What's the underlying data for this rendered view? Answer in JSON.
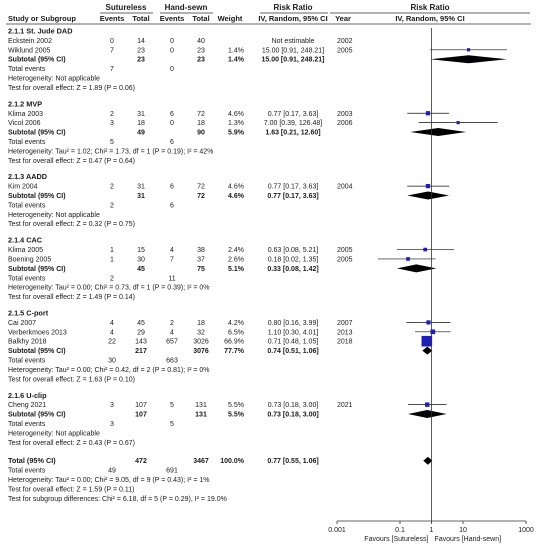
{
  "chart_data": {
    "type": "forest",
    "headers": {
      "group1": "Sutureless",
      "group2": "Hand-sewn",
      "rr_col": "Risk Ratio",
      "rr_method": "IV, Random, 95% CI",
      "plot_title": "Risk Ratio",
      "plot_method": "IV, Random, 95% CI",
      "study": "Study or Subgroup",
      "events1": "Events",
      "total1": "Total",
      "events2": "Events",
      "total2": "Total",
      "weight": "Weight",
      "year": "Year"
    },
    "subgroups": [
      {
        "title": "2.1.1 St. Jude DAD",
        "studies": [
          {
            "name": "Eckstein 2002",
            "e1": "0",
            "t1": "14",
            "e2": "0",
            "t2": "40",
            "weight": "",
            "ci_text": "Not estimable",
            "year": "2002",
            "rr": null,
            "lo": null,
            "hi": null
          },
          {
            "name": "Wiklund 2005",
            "e1": "7",
            "t1": "23",
            "e2": "0",
            "t2": "23",
            "weight": "1.4%",
            "ci_text": "15.00 [0.91, 248.21]",
            "year": "2005",
            "rr": 15.0,
            "lo": 0.91,
            "hi": 248.21
          }
        ],
        "subtotal": {
          "label": "Subtotal (95% CI)",
          "t1": "23",
          "t2": "23",
          "weight": "1.4%",
          "ci_text": "15.00 [0.91, 248.21]",
          "rr": 15.0,
          "lo": 0.91,
          "hi": 248.21
        },
        "total_events": {
          "label": "Total events",
          "e1": "7",
          "e2": "0"
        },
        "heterogeneity": "Heterogeneity: Not applicable",
        "overall": "Test for overall effect: Z = 1.89 (P = 0.06)"
      },
      {
        "title": "2.1.2 MVP",
        "studies": [
          {
            "name": "Klima 2003",
            "e1": "2",
            "t1": "31",
            "e2": "6",
            "t2": "72",
            "weight": "4.6%",
            "ci_text": "0.77 [0.17, 3.63]",
            "year": "2003",
            "rr": 0.77,
            "lo": 0.17,
            "hi": 3.63
          },
          {
            "name": "Vicol 2006",
            "e1": "3",
            "t1": "18",
            "e2": "0",
            "t2": "18",
            "weight": "1.3%",
            "ci_text": "7.00 [0.39, 126.48]",
            "year": "2006",
            "rr": 7.0,
            "lo": 0.39,
            "hi": 126.48
          }
        ],
        "subtotal": {
          "label": "Subtotal (95% CI)",
          "t1": "49",
          "t2": "90",
          "weight": "5.9%",
          "ci_text": "1.63 [0.21, 12.60]",
          "rr": 1.63,
          "lo": 0.21,
          "hi": 12.6
        },
        "total_events": {
          "label": "Total events",
          "e1": "5",
          "e2": "6"
        },
        "heterogeneity": "Heterogeneity: Tau² = 1.02; Chi² = 1.73, df = 1 (P = 0.19); I² = 42%",
        "overall": "Test for overall effect: Z = 0.47 (P = 0.64)"
      },
      {
        "title": "2.1.3 AADD",
        "studies": [
          {
            "name": "Kim 2004",
            "e1": "2",
            "t1": "31",
            "e2": "6",
            "t2": "72",
            "weight": "4.6%",
            "ci_text": "0.77 [0.17, 3.63]",
            "year": "2004",
            "rr": 0.77,
            "lo": 0.17,
            "hi": 3.63
          }
        ],
        "subtotal": {
          "label": "Subtotal (95% CI)",
          "t1": "31",
          "t2": "72",
          "weight": "4.6%",
          "ci_text": "0.77 [0.17, 3.63]",
          "rr": 0.77,
          "lo": 0.17,
          "hi": 3.63
        },
        "total_events": {
          "label": "Total events",
          "e1": "2",
          "e2": "6"
        },
        "heterogeneity": "Heterogeneity: Not applicable",
        "overall": "Test for overall effect: Z = 0.32 (P = 0.75)"
      },
      {
        "title": "2.1.4 CAC",
        "studies": [
          {
            "name": "Klima 2005",
            "e1": "1",
            "t1": "15",
            "e2": "4",
            "t2": "38",
            "weight": "2.4%",
            "ci_text": "0.63 [0.08, 5.21]",
            "year": "2005",
            "rr": 0.63,
            "lo": 0.08,
            "hi": 5.21
          },
          {
            "name": "Boening 2005",
            "e1": "1",
            "t1": "30",
            "e2": "7",
            "t2": "37",
            "weight": "2.6%",
            "ci_text": "0.18 [0.02, 1.35]",
            "year": "2005",
            "rr": 0.18,
            "lo": 0.02,
            "hi": 1.35
          }
        ],
        "subtotal": {
          "label": "Subtotal (95% CI)",
          "t1": "45",
          "t2": "75",
          "weight": "5.1%",
          "ci_text": "0.33 [0.08, 1.42]",
          "rr": 0.33,
          "lo": 0.08,
          "hi": 1.42
        },
        "total_events": {
          "label": "Total events",
          "e1": "2",
          "e2": "11"
        },
        "heterogeneity": "Heterogeneity: Tau² = 0.00; Chi² = 0.73, df = 1 (P = 0.39); I² = 0%",
        "overall": "Test for overall effect: Z = 1.49 (P = 0.14)"
      },
      {
        "title": "2.1.5 C-port",
        "studies": [
          {
            "name": "Cai 2007",
            "e1": "4",
            "t1": "45",
            "e2": "2",
            "t2": "18",
            "weight": "4.2%",
            "ci_text": "0.80 [0.16, 3.99]",
            "year": "2007",
            "rr": 0.8,
            "lo": 0.16,
            "hi": 3.99
          },
          {
            "name": "Verberkmoes 2013",
            "e1": "4",
            "t1": "29",
            "e2": "4",
            "t2": "32",
            "weight": "6.5%",
            "ci_text": "1.10 [0.30, 4.01]",
            "year": "2013",
            "rr": 1.1,
            "lo": 0.3,
            "hi": 4.01
          },
          {
            "name": "Balkhy 2018",
            "e1": "22",
            "t1": "143",
            "e2": "657",
            "t2": "3026",
            "weight": "66.9%",
            "ci_text": "0.71 [0.48, 1.05]",
            "year": "2018",
            "rr": 0.71,
            "lo": 0.48,
            "hi": 1.05
          }
        ],
        "subtotal": {
          "label": "Subtotal (95% CI)",
          "t1": "217",
          "t2": "3076",
          "weight": "77.7%",
          "ci_text": "0.74 [0.51, 1.06]",
          "rr": 0.74,
          "lo": 0.51,
          "hi": 1.06
        },
        "total_events": {
          "label": "Total events",
          "e1": "30",
          "e2": "663"
        },
        "heterogeneity": "Heterogeneity: Tau² = 0.00; Chi² = 0.42, df = 2 (P = 0.81); I² = 0%",
        "overall": "Test for overall effect: Z = 1.63 (P = 0.10)"
      },
      {
        "title": "2.1.6 U-clip",
        "studies": [
          {
            "name": "Cheng 2021",
            "e1": "3",
            "t1": "107",
            "e2": "5",
            "t2": "131",
            "weight": "5.5%",
            "ci_text": "0.73 [0.18, 3.00]",
            "year": "2021",
            "rr": 0.73,
            "lo": 0.18,
            "hi": 3.0
          }
        ],
        "subtotal": {
          "label": "Subtotal (95% CI)",
          "t1": "107",
          "t2": "131",
          "weight": "5.5%",
          "ci_text": "0.73 [0.18, 3.00]",
          "rr": 0.73,
          "lo": 0.18,
          "hi": 3.0
        },
        "total_events": {
          "label": "Total events",
          "e1": "3",
          "e2": "5"
        },
        "heterogeneity": "Heterogeneity: Not applicable",
        "overall": "Test for overall effect: Z = 0.43 (P = 0.67)"
      }
    ],
    "total": {
      "label": "Total (95% CI)",
      "t1": "472",
      "t2": "3467",
      "weight": "100.0%",
      "ci_text": "0.77 [0.55, 1.06]",
      "rr": 0.77,
      "lo": 0.55,
      "hi": 1.06,
      "events_label": "Total events",
      "e1": "49",
      "e2": "691",
      "heterogeneity": "Heterogeneity: Tau² = 0.00; Chi² = 9.05, df = 9 (P = 0.43); I² = 1%",
      "overall": "Test for overall effect: Z = 1.59 (P = 0.11)",
      "subgroup": "Test for subgroup differences: Chi² = 6.18, df = 5 (P = 0.29), I² = 19.0%"
    },
    "axis": {
      "scale": "log",
      "min": 0.001,
      "max": 1000,
      "ticks": [
        0.001,
        0.1,
        1,
        10,
        1000
      ],
      "tick_labels": [
        "0.001",
        "0.1",
        "1",
        "10",
        "1000"
      ],
      "left_label": "Favours [Sutureless]",
      "right_label": "Favours [Hand-sewn]"
    },
    "colors": {
      "marker": "#1f1fb4",
      "diamond": "#000000",
      "text": "#1a1a1a",
      "line": "#333333"
    }
  }
}
